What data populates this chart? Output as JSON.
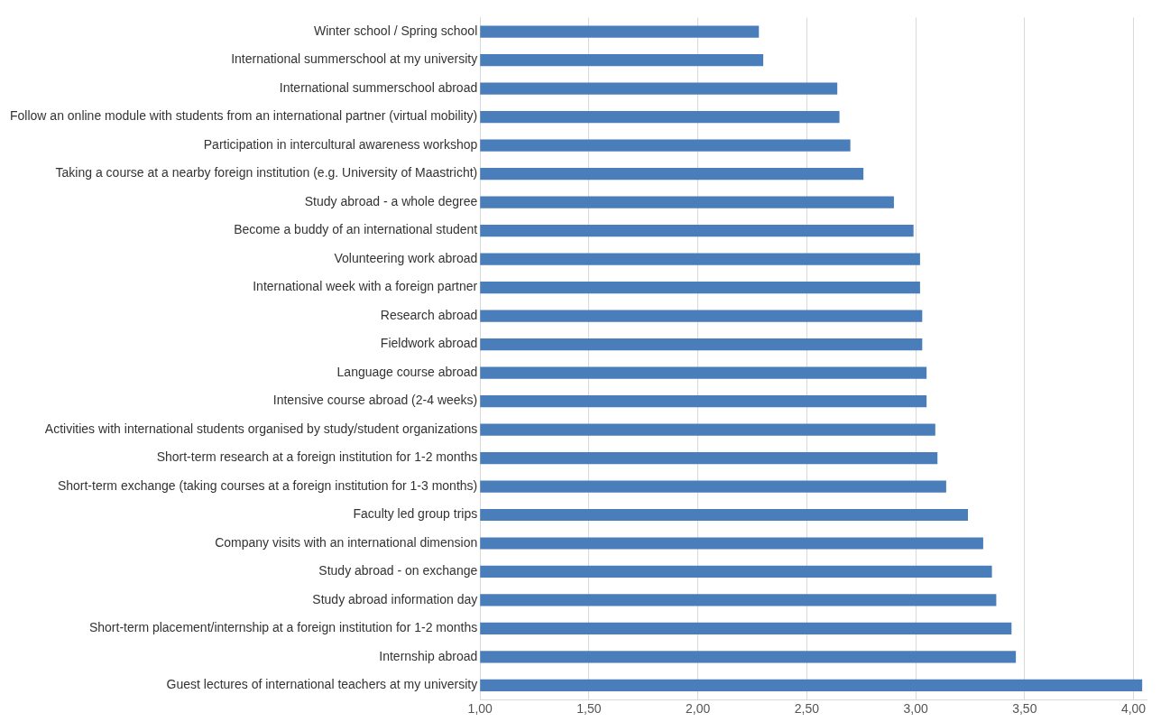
{
  "chart_data": {
    "type": "bar",
    "orientation": "horizontal",
    "categories": [
      "Winter school / Spring school",
      "International summerschool at my university",
      "International summerschool abroad",
      "Follow an online module with students from an international partner (virtual mobility)",
      "Participation in intercultural awareness workshop",
      "Taking a course at a nearby foreign institution (e.g. University of Maastricht)",
      "Study abroad - a whole degree",
      "Become a buddy of an international student",
      "Volunteering work abroad",
      "International week with a foreign partner",
      "Research abroad",
      "Fieldwork abroad",
      "Language course abroad",
      "Intensive course abroad (2-4 weeks)",
      "Activities with international students organised by study/student organizations",
      "Short-term research at a foreign institution for 1-2 months",
      "Short-term exchange (taking courses at a foreign institution for 1-3 months)",
      "Faculty led group trips",
      "Company visits with an international dimension",
      "Study abroad - on exchange",
      "Study abroad information day",
      "Short-term placement/internship at a foreign institution for 1-2 months",
      "Internship abroad",
      "Guest lectures of international teachers at my university"
    ],
    "values": [
      2.28,
      2.3,
      2.64,
      2.65,
      2.7,
      2.76,
      2.9,
      2.99,
      3.02,
      3.02,
      3.03,
      3.03,
      3.05,
      3.05,
      3.09,
      3.1,
      3.14,
      3.24,
      3.31,
      3.35,
      3.37,
      3.44,
      3.46,
      4.04
    ],
    "color": "#4a7ebb",
    "xlim": [
      1,
      4.06
    ],
    "xticks": [
      {
        "value": 1,
        "label": "1,00"
      },
      {
        "value": 1.5,
        "label": "1,50"
      },
      {
        "value": 2,
        "label": "2,00"
      },
      {
        "value": 2.5,
        "label": "2,50"
      },
      {
        "value": 3,
        "label": "3,00"
      },
      {
        "value": 3.5,
        "label": "3,50"
      },
      {
        "value": 4,
        "label": "4,00"
      }
    ],
    "grid": "x"
  }
}
